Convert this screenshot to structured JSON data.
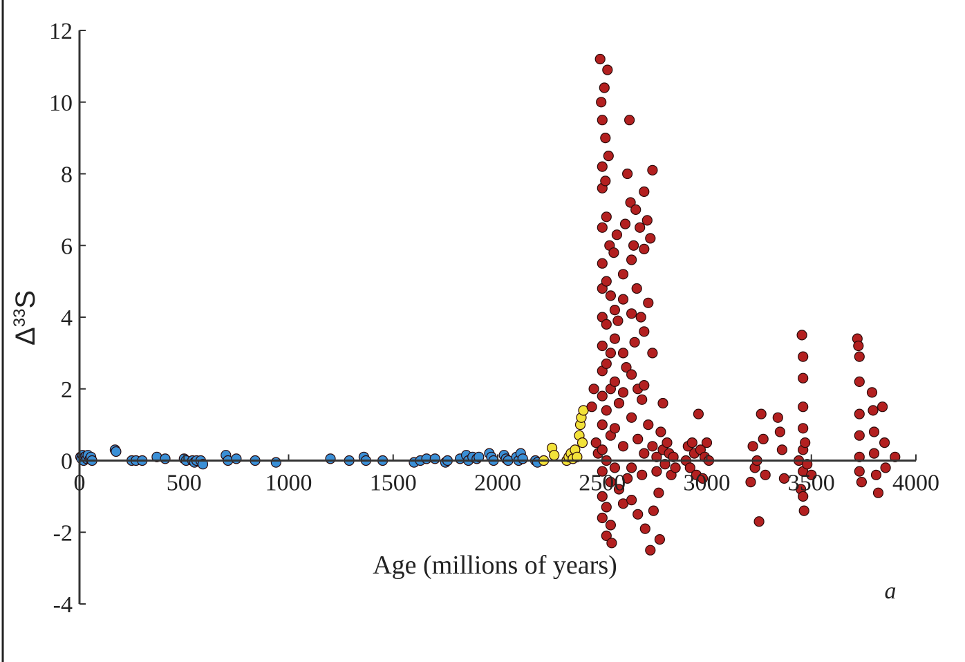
{
  "chart_data": {
    "type": "scatter",
    "title": "",
    "xlabel": "Age (millions of years)",
    "ylabel_main": "Δ",
    "ylabel_sup": "33",
    "ylabel_tail": "S",
    "annotation": "a",
    "xlim": [
      0,
      4000
    ],
    "ylim": [
      -4,
      12
    ],
    "x_ticks": [
      0,
      500,
      1000,
      1500,
      2000,
      2500,
      3000,
      3500,
      4000
    ],
    "x_tick_labels": [
      "0",
      "500",
      "1000",
      "1500",
      "2000",
      "2500",
      "3000",
      "3500",
      "4000"
    ],
    "y_ticks": [
      -4,
      -2,
      0,
      2,
      4,
      6,
      8,
      10,
      12
    ],
    "y_tick_labels": [
      "-4",
      "-2",
      "0",
      "2",
      "4",
      "6",
      "8",
      "10",
      "12"
    ],
    "grid": false,
    "series_colors": {
      "blue": "#3a8fd6",
      "yellow": "#f2e23a",
      "red": "#b32020"
    },
    "series": [
      {
        "color": "blue",
        "points": [
          [
            5,
            0.1
          ],
          [
            10,
            0.05
          ],
          [
            15,
            0.15
          ],
          [
            20,
            0.0
          ],
          [
            25,
            0.1
          ],
          [
            30,
            0.12
          ],
          [
            35,
            0.05
          ],
          [
            40,
            0.15
          ],
          [
            50,
            0.05
          ],
          [
            55,
            0.1
          ],
          [
            60,
            0.0
          ],
          [
            170,
            0.3
          ],
          [
            175,
            0.25
          ],
          [
            250,
            0.0
          ],
          [
            270,
            0.0
          ],
          [
            300,
            0.0
          ],
          [
            370,
            0.1
          ],
          [
            410,
            0.05
          ],
          [
            500,
            0.05
          ],
          [
            510,
            0.0
          ],
          [
            540,
            0.0
          ],
          [
            550,
            -0.05
          ],
          [
            560,
            0.0
          ],
          [
            580,
            0.0
          ],
          [
            590,
            -0.1
          ],
          [
            700,
            0.15
          ],
          [
            710,
            0.0
          ],
          [
            750,
            0.05
          ],
          [
            840,
            0.0
          ],
          [
            940,
            -0.05
          ],
          [
            1200,
            0.05
          ],
          [
            1290,
            0.0
          ],
          [
            1360,
            0.1
          ],
          [
            1370,
            0.0
          ],
          [
            1450,
            0.0
          ],
          [
            1600,
            -0.05
          ],
          [
            1630,
            0.0
          ],
          [
            1660,
            0.05
          ],
          [
            1700,
            0.05
          ],
          [
            1750,
            -0.05
          ],
          [
            1760,
            0.0
          ],
          [
            1820,
            0.05
          ],
          [
            1850,
            0.15
          ],
          [
            1860,
            0.0
          ],
          [
            1880,
            0.1
          ],
          [
            1900,
            0.05
          ],
          [
            1910,
            0.1
          ],
          [
            1960,
            0.2
          ],
          [
            1970,
            0.1
          ],
          [
            1980,
            0.0
          ],
          [
            2030,
            0.15
          ],
          [
            2040,
            0.05
          ],
          [
            2050,
            0.0
          ],
          [
            2090,
            0.1
          ],
          [
            2100,
            0.0
          ],
          [
            2110,
            0.2
          ],
          [
            2120,
            0.05
          ],
          [
            2180,
            0.0
          ],
          [
            2190,
            -0.05
          ]
        ]
      },
      {
        "color": "yellow",
        "points": [
          [
            2220,
            0.0
          ],
          [
            2260,
            0.35
          ],
          [
            2270,
            0.15
          ],
          [
            2330,
            0.0
          ],
          [
            2340,
            0.1
          ],
          [
            2350,
            0.2
          ],
          [
            2360,
            0.05
          ],
          [
            2370,
            0.3
          ],
          [
            2390,
            0.7
          ],
          [
            2395,
            1.0
          ],
          [
            2400,
            1.2
          ],
          [
            2405,
            0.5
          ],
          [
            2410,
            1.4
          ],
          [
            2380,
            0.1
          ]
        ]
      },
      {
        "color": "red",
        "points": [
          [
            2450,
            1.5
          ],
          [
            2460,
            2.0
          ],
          [
            2470,
            0.5
          ],
          [
            2480,
            0.2
          ],
          [
            2490,
            11.2
          ],
          [
            2495,
            10.0
          ],
          [
            2500,
            9.5
          ],
          [
            2500,
            8.2
          ],
          [
            2500,
            7.6
          ],
          [
            2500,
            6.5
          ],
          [
            2500,
            5.5
          ],
          [
            2500,
            4.8
          ],
          [
            2500,
            4.0
          ],
          [
            2500,
            3.2
          ],
          [
            2500,
            2.5
          ],
          [
            2500,
            1.8
          ],
          [
            2500,
            1.0
          ],
          [
            2500,
            0.3
          ],
          [
            2500,
            -0.3
          ],
          [
            2500,
            -1.0
          ],
          [
            2500,
            -1.6
          ],
          [
            2510,
            10.4
          ],
          [
            2515,
            9.0
          ],
          [
            2515,
            7.8
          ],
          [
            2520,
            6.8
          ],
          [
            2520,
            5.0
          ],
          [
            2520,
            3.8
          ],
          [
            2520,
            2.7
          ],
          [
            2520,
            1.4
          ],
          [
            2520,
            0.0
          ],
          [
            2520,
            -1.3
          ],
          [
            2520,
            -2.1
          ],
          [
            2525,
            10.9
          ],
          [
            2530,
            8.5
          ],
          [
            2535,
            6.0
          ],
          [
            2540,
            4.6
          ],
          [
            2540,
            3.0
          ],
          [
            2540,
            2.0
          ],
          [
            2540,
            0.7
          ],
          [
            2540,
            -0.6
          ],
          [
            2540,
            -1.8
          ],
          [
            2545,
            -2.3
          ],
          [
            2555,
            5.8
          ],
          [
            2560,
            4.2
          ],
          [
            2560,
            3.4
          ],
          [
            2560,
            2.2
          ],
          [
            2560,
            0.9
          ],
          [
            2560,
            -0.2
          ],
          [
            2570,
            6.3
          ],
          [
            2575,
            3.9
          ],
          [
            2580,
            1.6
          ],
          [
            2580,
            -0.8
          ],
          [
            2600,
            5.2
          ],
          [
            2600,
            4.5
          ],
          [
            2600,
            3.0
          ],
          [
            2600,
            1.9
          ],
          [
            2600,
            0.4
          ],
          [
            2600,
            -1.2
          ],
          [
            2610,
            6.6
          ],
          [
            2615,
            2.6
          ],
          [
            2620,
            8.0
          ],
          [
            2620,
            -0.5
          ],
          [
            2630,
            9.5
          ],
          [
            2635,
            7.2
          ],
          [
            2640,
            5.6
          ],
          [
            2640,
            4.1
          ],
          [
            2640,
            2.4
          ],
          [
            2640,
            1.2
          ],
          [
            2640,
            -0.2
          ],
          [
            2640,
            -1.1
          ],
          [
            2650,
            6.0
          ],
          [
            2655,
            3.3
          ],
          [
            2660,
            7.0
          ],
          [
            2665,
            4.8
          ],
          [
            2670,
            2.0
          ],
          [
            2670,
            0.6
          ],
          [
            2670,
            -1.5
          ],
          [
            2680,
            6.5
          ],
          [
            2685,
            4.0
          ],
          [
            2690,
            1.7
          ],
          [
            2690,
            -0.4
          ],
          [
            2700,
            7.5
          ],
          [
            2700,
            5.9
          ],
          [
            2700,
            3.6
          ],
          [
            2700,
            2.1
          ],
          [
            2700,
            0.2
          ],
          [
            2705,
            -1.9
          ],
          [
            2715,
            6.7
          ],
          [
            2720,
            4.4
          ],
          [
            2720,
            1.0
          ],
          [
            2730,
            6.2
          ],
          [
            2730,
            -2.5
          ],
          [
            2740,
            8.1
          ],
          [
            2740,
            3.0
          ],
          [
            2740,
            0.4
          ],
          [
            2745,
            -1.4
          ],
          [
            2760,
            0.1
          ],
          [
            2760,
            -0.3
          ],
          [
            2770,
            -0.9
          ],
          [
            2775,
            -2.2
          ],
          [
            2780,
            0.8
          ],
          [
            2790,
            1.6
          ],
          [
            2790,
            0.3
          ],
          [
            2800,
            -0.1
          ],
          [
            2810,
            0.5
          ],
          [
            2820,
            0.2
          ],
          [
            2830,
            -0.4
          ],
          [
            2840,
            0.1
          ],
          [
            2850,
            -0.2
          ],
          [
            2900,
            0.0
          ],
          [
            2910,
            0.4
          ],
          [
            2920,
            -0.2
          ],
          [
            2930,
            0.5
          ],
          [
            2940,
            0.2
          ],
          [
            2950,
            -0.4
          ],
          [
            2960,
            1.3
          ],
          [
            2970,
            0.3
          ],
          [
            2980,
            -0.5
          ],
          [
            2990,
            0.1
          ],
          [
            3000,
            0.5
          ],
          [
            3010,
            0.0
          ],
          [
            3210,
            -0.6
          ],
          [
            3220,
            0.4
          ],
          [
            3230,
            -0.2
          ],
          [
            3240,
            0.0
          ],
          [
            3250,
            -1.7
          ],
          [
            3260,
            1.3
          ],
          [
            3270,
            0.6
          ],
          [
            3280,
            -0.4
          ],
          [
            3340,
            1.2
          ],
          [
            3350,
            0.8
          ],
          [
            3360,
            0.3
          ],
          [
            3370,
            -0.5
          ],
          [
            3440,
            0.0
          ],
          [
            3450,
            -0.8
          ],
          [
            3455,
            3.5
          ],
          [
            3460,
            2.9
          ],
          [
            3460,
            2.3
          ],
          [
            3460,
            1.5
          ],
          [
            3460,
            0.9
          ],
          [
            3460,
            0.3
          ],
          [
            3460,
            -0.3
          ],
          [
            3460,
            -1.0
          ],
          [
            3465,
            -1.4
          ],
          [
            3470,
            0.5
          ],
          [
            3480,
            -0.1
          ],
          [
            3500,
            -0.4
          ],
          [
            3720,
            3.4
          ],
          [
            3725,
            3.2
          ],
          [
            3730,
            2.9
          ],
          [
            3730,
            2.2
          ],
          [
            3730,
            1.3
          ],
          [
            3730,
            0.7
          ],
          [
            3730,
            0.1
          ],
          [
            3730,
            -0.3
          ],
          [
            3740,
            -0.6
          ],
          [
            3790,
            1.9
          ],
          [
            3795,
            1.4
          ],
          [
            3800,
            0.8
          ],
          [
            3800,
            0.2
          ],
          [
            3810,
            -0.4
          ],
          [
            3820,
            -0.9
          ],
          [
            3840,
            1.5
          ],
          [
            3850,
            0.5
          ],
          [
            3855,
            -0.2
          ],
          [
            3900,
            0.1
          ]
        ]
      }
    ]
  }
}
